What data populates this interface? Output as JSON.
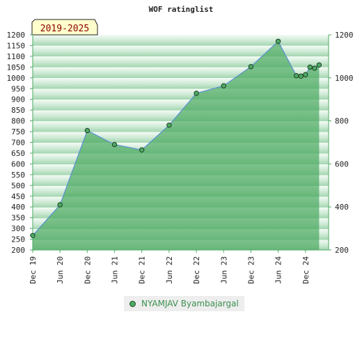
{
  "chart_data": {
    "type": "area",
    "title": "WOF ratinglist",
    "period_badge": "2019-2025",
    "x_ticks": [
      "Dec 19",
      "Jun 20",
      "Dec 20",
      "Jun 21",
      "Dec 21",
      "Jun 22",
      "Dec 22",
      "Jun 23",
      "Dec 23",
      "Jun 24",
      "Dec 24"
    ],
    "y_ticks_left": [
      200,
      250,
      300,
      350,
      400,
      450,
      500,
      550,
      600,
      650,
      700,
      750,
      800,
      850,
      900,
      950,
      1000,
      1050,
      1100,
      1150,
      1200
    ],
    "y_ticks_right": [
      200,
      400,
      600,
      800,
      1000,
      1200
    ],
    "ylim": [
      200,
      1200
    ],
    "grid": false,
    "legend_position": "bottom",
    "series": [
      {
        "name": "NYAMJAV Byambajargal",
        "color": "#4daa63",
        "points": [
          {
            "x": "Dec 19",
            "y": 267
          },
          {
            "x": "Jun 20",
            "y": 410
          },
          {
            "x": "Dec 20",
            "y": 755
          },
          {
            "x": "Jun 21",
            "y": 690
          },
          {
            "x": "Dec 21",
            "y": 665
          },
          {
            "x": "Jun 22",
            "y": 780
          },
          {
            "x": "Dec 22",
            "y": 928
          },
          {
            "x": "Jun 23",
            "y": 963
          },
          {
            "x": "Dec 23",
            "y": 1052
          },
          {
            "x": "Jun 24",
            "y": 1170
          },
          {
            "x": "Oct 24",
            "y": 1010
          },
          {
            "x": "Nov 24",
            "y": 1008
          },
          {
            "x": "Dec 24",
            "y": 1015
          },
          {
            "x": "Jan 25",
            "y": 1050
          },
          {
            "x": "Feb 25",
            "y": 1045
          },
          {
            "x": "Mar 25",
            "y": 1060
          }
        ]
      }
    ]
  }
}
